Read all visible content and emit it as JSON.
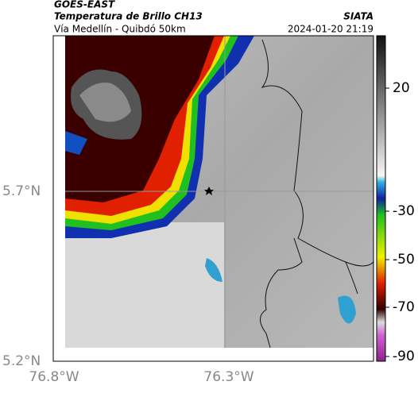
{
  "header": {
    "agency": "GOES-EAST",
    "title": "Temperatura de Brillo CH13",
    "subtitle": "Vía Medellín - Quibdó 50km",
    "org": "SIATA",
    "datetime": "2024-01-20 21:19"
  },
  "axes": {
    "lat_labels": [
      "5.7°N",
      "5.2°N"
    ],
    "lon_labels": [
      "76.8°W",
      "76.3°W"
    ]
  },
  "colorbar": {
    "ticks": [
      20,
      -30,
      -50,
      -70,
      -90
    ]
  }
}
